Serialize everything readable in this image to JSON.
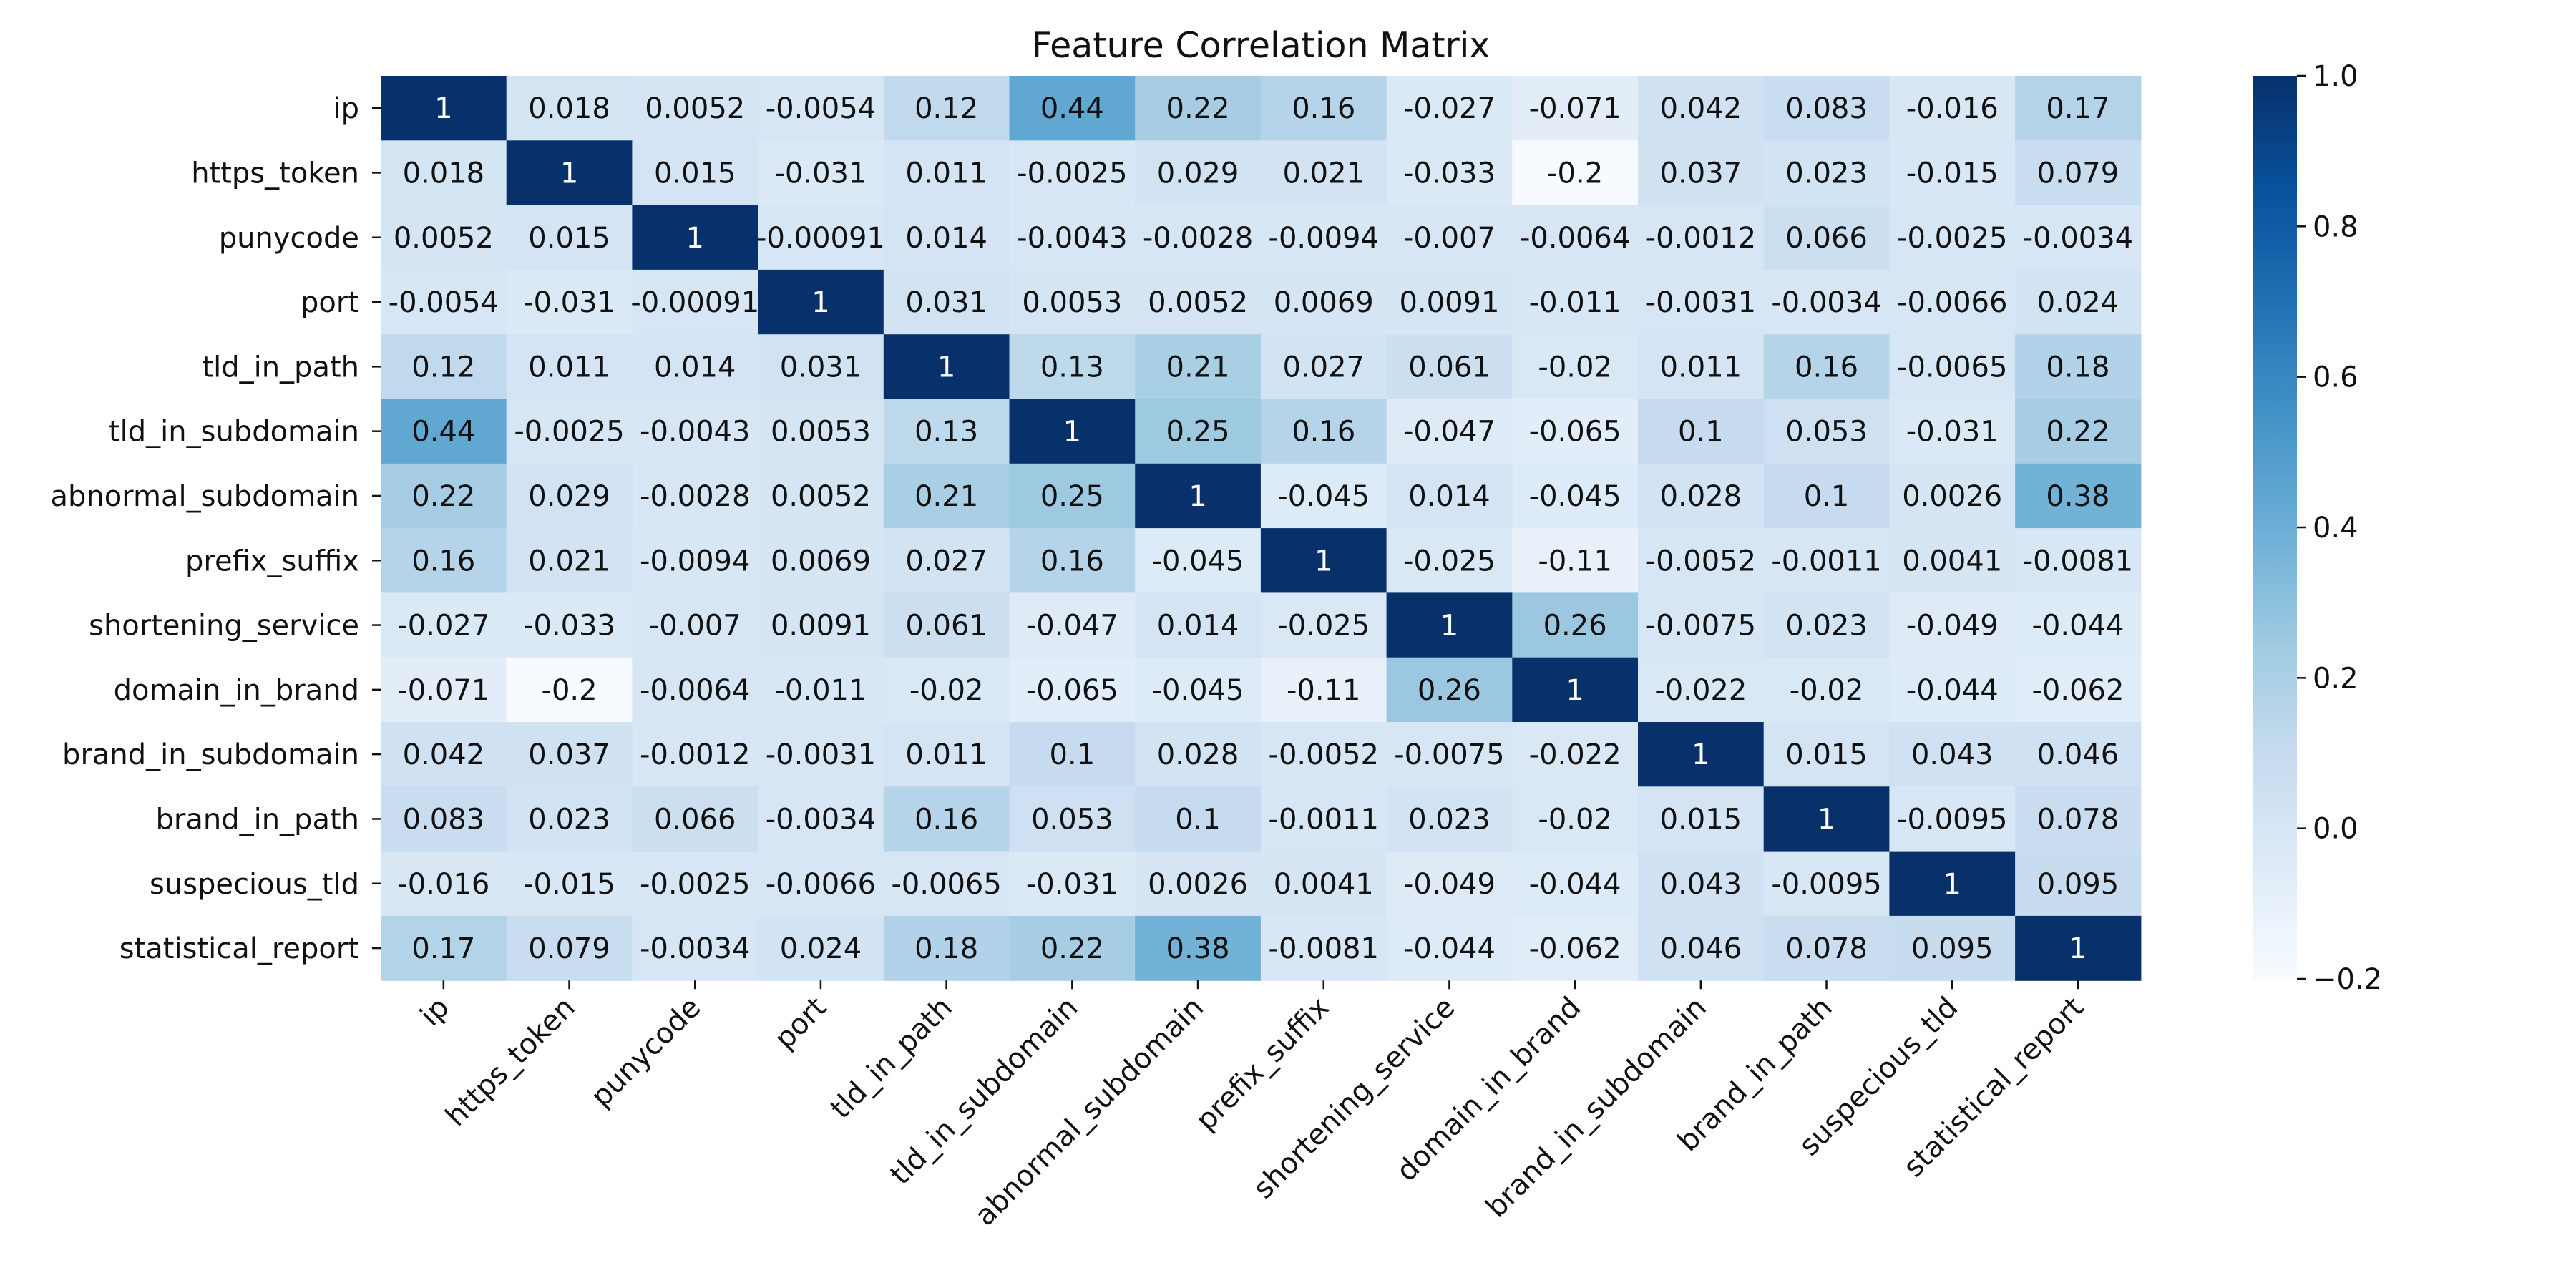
{
  "chart_data": {
    "type": "heatmap",
    "title": "Feature Correlation Matrix",
    "xlabel": "",
    "ylabel": "",
    "labels": [
      "ip",
      "https_token",
      "punycode",
      "port",
      "tld_in_path",
      "tld_in_subdomain",
      "abnormal_subdomain",
      "prefix_suffix",
      "shortening_service",
      "domain_in_brand",
      "brand_in_subdomain",
      "brand_in_path",
      "suspecious_tld",
      "statistical_report"
    ],
    "matrix": [
      [
        1,
        0.018,
        0.0052,
        -0.0054,
        0.12,
        0.44,
        0.22,
        0.16,
        -0.027,
        -0.071,
        0.042,
        0.083,
        -0.016,
        0.17
      ],
      [
        0.018,
        1,
        0.015,
        -0.031,
        0.011,
        -0.0025,
        0.029,
        0.021,
        -0.033,
        -0.2,
        0.037,
        0.023,
        -0.015,
        0.079
      ],
      [
        0.0052,
        0.015,
        1,
        -0.00091,
        0.014,
        -0.0043,
        -0.0028,
        -0.0094,
        -0.007,
        -0.0064,
        -0.0012,
        0.066,
        -0.0025,
        -0.0034
      ],
      [
        -0.0054,
        -0.031,
        -0.00091,
        1,
        0.031,
        0.0053,
        0.0052,
        0.0069,
        0.0091,
        -0.011,
        -0.0031,
        -0.0034,
        -0.0066,
        0.024
      ],
      [
        0.12,
        0.011,
        0.014,
        0.031,
        1,
        0.13,
        0.21,
        0.027,
        0.061,
        -0.02,
        0.011,
        0.16,
        -0.0065,
        0.18
      ],
      [
        0.44,
        -0.0025,
        -0.0043,
        0.0053,
        0.13,
        1,
        0.25,
        0.16,
        -0.047,
        -0.065,
        0.1,
        0.053,
        -0.031,
        0.22
      ],
      [
        0.22,
        0.029,
        -0.0028,
        0.0052,
        0.21,
        0.25,
        1,
        -0.045,
        0.014,
        -0.045,
        0.028,
        0.1,
        0.0026,
        0.38
      ],
      [
        0.16,
        0.021,
        -0.0094,
        0.0069,
        0.027,
        0.16,
        -0.045,
        1,
        -0.025,
        -0.11,
        -0.0052,
        -0.0011,
        0.0041,
        -0.0081
      ],
      [
        -0.027,
        -0.033,
        -0.007,
        0.0091,
        0.061,
        -0.047,
        0.014,
        -0.025,
        1,
        0.26,
        -0.0075,
        0.023,
        -0.049,
        -0.044
      ],
      [
        -0.071,
        -0.2,
        -0.0064,
        -0.011,
        -0.02,
        -0.065,
        -0.045,
        -0.11,
        0.26,
        1,
        -0.022,
        -0.02,
        -0.044,
        -0.062
      ],
      [
        0.042,
        0.037,
        -0.0012,
        -0.0031,
        0.011,
        0.1,
        0.028,
        -0.0052,
        -0.0075,
        -0.022,
        1,
        0.015,
        0.043,
        0.046
      ],
      [
        0.083,
        0.023,
        0.066,
        -0.0034,
        0.16,
        0.053,
        0.1,
        -0.0011,
        0.023,
        -0.02,
        0.015,
        1,
        -0.0095,
        0.078
      ],
      [
        -0.016,
        -0.015,
        -0.0025,
        -0.0066,
        -0.0065,
        -0.031,
        0.0026,
        0.0041,
        -0.049,
        -0.044,
        0.043,
        -0.0095,
        1,
        0.095
      ],
      [
        0.17,
        0.079,
        -0.0034,
        0.024,
        0.18,
        0.22,
        0.38,
        -0.0081,
        -0.044,
        -0.062,
        0.046,
        0.078,
        0.095,
        1
      ]
    ],
    "colorscale": {
      "name": "Blues",
      "vmin": -0.2,
      "vmax": 1.0,
      "ticks": [
        1.0,
        0.8,
        0.6,
        0.4,
        0.2,
        0.0,
        -0.2
      ],
      "tick_labels": [
        "1.0",
        "0.8",
        "0.6",
        "0.4",
        "0.2",
        "0.0",
        "−0.2"
      ]
    },
    "annotations": "cell values shown",
    "xtick_rotation": 45
  }
}
